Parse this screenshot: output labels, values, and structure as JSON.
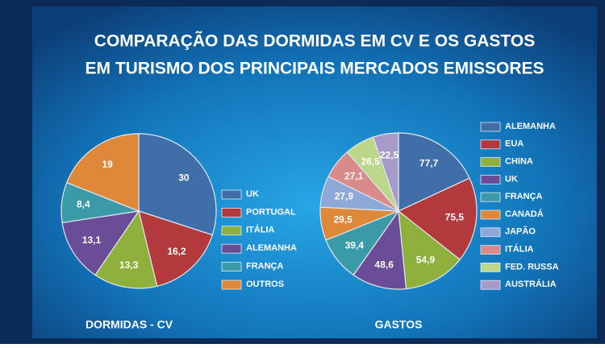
{
  "title": [
    "COMPARAÇÃO DAS DORMIDAS EM CV E OS GASTOS",
    "EM TURISMO DOS PRINCIPAIS MERCADOS EMISSORES"
  ],
  "chart_data": [
    {
      "type": "pie",
      "title": "DORMIDAS - CV",
      "categories": [
        "UK",
        "PORTUGAL",
        "ITÁLIA",
        "ALEMANHA",
        "FRANÇA",
        "OUTROS"
      ],
      "values": [
        30,
        16.2,
        13.3,
        13.1,
        8.4,
        19
      ],
      "value_labels": [
        "30",
        "16,2",
        "13,3",
        "13,1",
        "8,4",
        "19"
      ],
      "colors": [
        "#3f6ea8",
        "#b23a3c",
        "#8fb03c",
        "#6b4c97",
        "#3a9aa8",
        "#e0883a"
      ]
    },
    {
      "type": "pie",
      "title": "GASTOS",
      "categories": [
        "ALEMANHA",
        "EUA",
        "CHINA",
        "UK",
        "FRANÇA",
        "CANADÁ",
        "JAPÃO",
        "ITÁLIA",
        "FED. RUSSA",
        "AUSTRÁLIA"
      ],
      "values": [
        77.7,
        75.5,
        54.9,
        48.6,
        39.4,
        29.5,
        27.9,
        27.1,
        26.5,
        22.5
      ],
      "value_labels": [
        "77,7",
        "75,5",
        "54,9",
        "48,6",
        "39,4",
        "29,5",
        "27,9",
        "27,1",
        "26,5",
        "22,5"
      ],
      "colors": [
        "#3f6ea8",
        "#b23a3c",
        "#8fb03c",
        "#6b4c97",
        "#3a9aa8",
        "#e0883a",
        "#8ea8d8",
        "#d98a8a",
        "#bcd68a",
        "#a89ac8"
      ]
    }
  ]
}
